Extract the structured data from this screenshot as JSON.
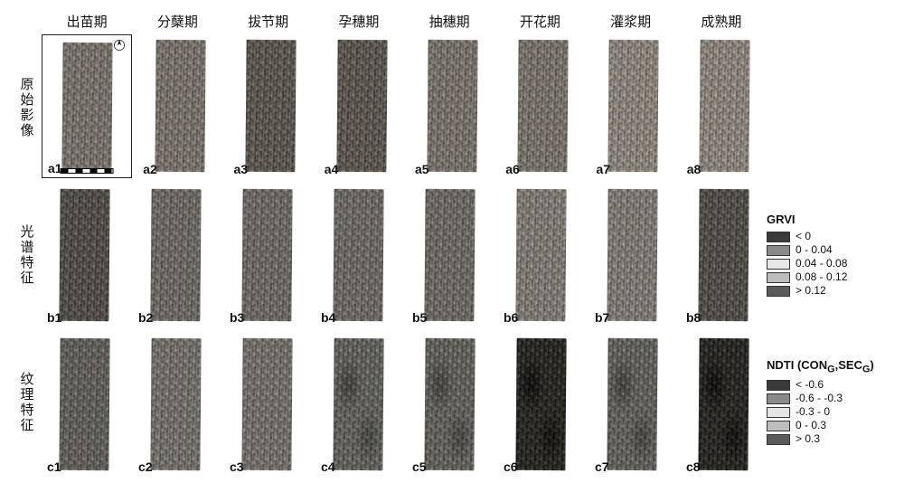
{
  "columns": [
    {
      "label": "出苗期"
    },
    {
      "label": "分蘖期"
    },
    {
      "label": "拔节期"
    },
    {
      "label": "孕穗期"
    },
    {
      "label": "抽穗期"
    },
    {
      "label": "开花期"
    },
    {
      "label": "灌浆期"
    },
    {
      "label": "成熟期"
    }
  ],
  "rows": [
    {
      "label": "原始影像",
      "prefix": "a",
      "kind": "original"
    },
    {
      "label": "光谱特征",
      "prefix": "b",
      "kind": "spectral"
    },
    {
      "label": "纹理特征",
      "prefix": "c",
      "kind": "texture"
    }
  ],
  "panel_variants": {
    "a": [
      "",
      "",
      "darker",
      "darker",
      "",
      "",
      "lighter",
      "lighter"
    ],
    "b": [
      "darker",
      "",
      "",
      "",
      "",
      "lighter",
      "lighter",
      "darker"
    ],
    "c": [
      "",
      "lighter",
      "lighter",
      "patchy",
      "patchy",
      "darkest patchy",
      "patchy",
      "darkest patchy"
    ]
  },
  "legends": {
    "grvi": {
      "title": "GRVI",
      "items": [
        {
          "color": "#3a3a3a",
          "label": "< 0"
        },
        {
          "color": "#8a8a8a",
          "label": "0 - 0.04"
        },
        {
          "color": "#e6e6e6",
          "label": "0.04 - 0.08"
        },
        {
          "color": "#bdbdbd",
          "label": "0.08 - 0.12"
        },
        {
          "color": "#5a5a5a",
          "label": "> 0.12"
        }
      ]
    },
    "ndti": {
      "title": "NDTI (CON_G, SEC_G)",
      "items": [
        {
          "color": "#3a3a3a",
          "label": "< -0.6"
        },
        {
          "color": "#8a8a8a",
          "label": "-0.6 - -0.3"
        },
        {
          "color": "#e6e6e6",
          "label": "-0.3 - 0"
        },
        {
          "color": "#bdbdbd",
          "label": "0 - 0.3"
        },
        {
          "color": "#5a5a5a",
          "label": "> 0.3"
        }
      ]
    }
  },
  "background_color": "#ffffff",
  "header_fontsize": 15,
  "rowlabel_fontsize": 15,
  "tag_fontsize": 14,
  "legend_title_fontsize": 13,
  "legend_item_fontsize": 12
}
